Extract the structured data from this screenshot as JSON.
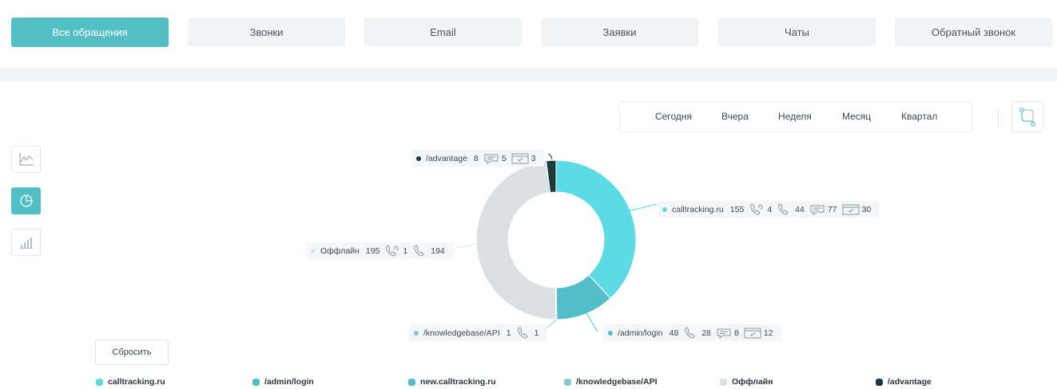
{
  "tabs": [
    {
      "label": "Все обращения",
      "active": true
    },
    {
      "label": "Звонки",
      "active": false
    },
    {
      "label": "Email",
      "active": false
    },
    {
      "label": "Заявки",
      "active": false
    },
    {
      "label": "Чаты",
      "active": false
    },
    {
      "label": "Обратный звонок",
      "active": false
    }
  ],
  "periods": [
    "Сегодня",
    "Вчера",
    "Неделя",
    "Месяц",
    "Квартал"
  ],
  "reset_label": "Сбросить",
  "chart_data": {
    "type": "pie",
    "donut": true,
    "slices": [
      {
        "name": "calltracking.ru",
        "value": 155,
        "color": "#5cdbe5",
        "callback": 4,
        "calls": 44,
        "chats": 77,
        "forms": 30
      },
      {
        "name": "/admin/login",
        "value": 48,
        "color": "#52bec5",
        "calls": 28,
        "chats": 8,
        "forms": 12
      },
      {
        "name": "/knowledgebase/API",
        "value": 1,
        "color": "#8cc7cf",
        "calls": 1
      },
      {
        "name": "Оффлайн",
        "value": 195,
        "color": "#dbe1e3",
        "callback": 1,
        "calls": 194
      },
      {
        "name": "/advantage",
        "value": 8,
        "color": "#1f3a3e",
        "chats": 5,
        "forms": 3
      }
    ]
  },
  "legend": [
    {
      "name": "calltracking.ru",
      "color": "#5cdbe5"
    },
    {
      "name": "/admin/login",
      "color": "#52bec5"
    },
    {
      "name": "new.calltracking.ru",
      "color": "#52bec5"
    },
    {
      "name": "/knowledgebase/API",
      "color": "#8cc7cf"
    },
    {
      "name": "Оффлайн",
      "color": "#dbe1e3"
    },
    {
      "name": "/advantage",
      "color": "#1f3a3e"
    }
  ],
  "labels": {
    "calltracking": {
      "name": "calltracking.ru",
      "total": "155",
      "callback": "4",
      "calls": "44",
      "chats": "77",
      "forms": "30"
    },
    "admin": {
      "name": "/admin/login",
      "total": "48",
      "calls": "28",
      "chats": "8",
      "forms": "12"
    },
    "kb": {
      "name": "/knowledgebase/API",
      "total": "1",
      "calls": "1"
    },
    "offline": {
      "name": "Оффлайн",
      "total": "195",
      "callback": "1",
      "calls": "194"
    },
    "advantage": {
      "name": "/advantage",
      "total": "8",
      "chats": "5",
      "forms": "3"
    }
  },
  "icons": {
    "route": "route-icon",
    "line_chart": "line-chart-icon",
    "pie_chart": "pie-chart-icon",
    "bar_chart": "bar-chart-icon",
    "phone": "phone-icon",
    "callback": "callback-icon",
    "chat": "chat-icon",
    "form": "form-icon"
  }
}
